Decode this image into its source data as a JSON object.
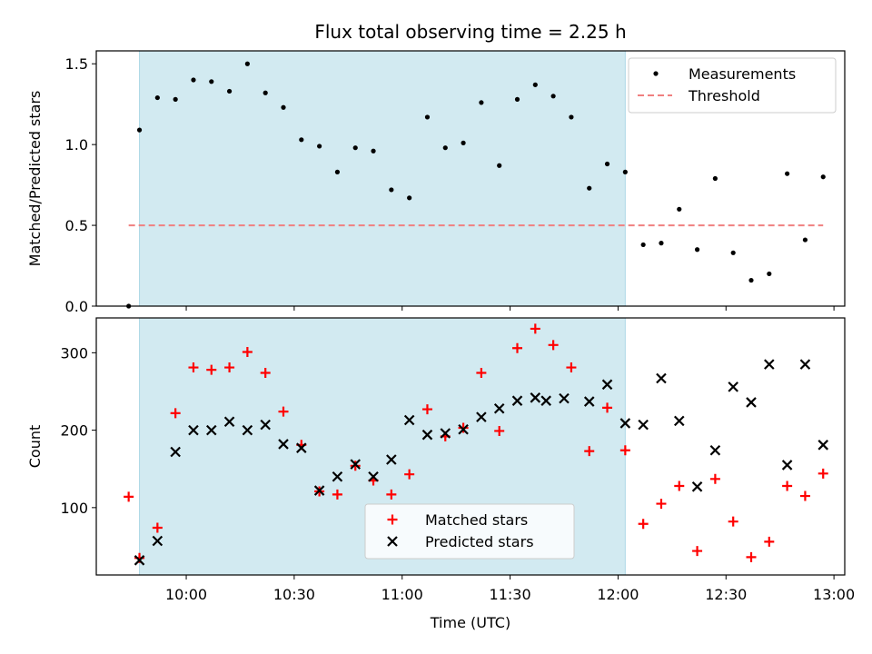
{
  "figure": {
    "title": "Flux total observing time = 2.25 h",
    "xlabel": "Time (UTC)"
  },
  "chart_data": [
    {
      "type": "scatter",
      "panel": "top",
      "ylabel": "Matched/Predicted stars",
      "ylim": [
        0,
        1.58
      ],
      "yticks": [
        0.0,
        0.5,
        1.0,
        1.5
      ],
      "ytick_labels": [
        "0.0",
        "0.5",
        "1.0",
        "1.5"
      ],
      "xlim": [
        "09:35",
        "13:03"
      ],
      "shaded_interval": [
        "09:47",
        "12:02"
      ],
      "shade_color": "#add8e6",
      "legend_position": "upper right",
      "series": [
        {
          "name": "Measurements",
          "marker": "dot",
          "color": "#000000",
          "points": [
            {
              "x": "09:44",
              "y": 0.0
            },
            {
              "x": "09:47",
              "y": 1.09
            },
            {
              "x": "09:52",
              "y": 1.29
            },
            {
              "x": "09:57",
              "y": 1.28
            },
            {
              "x": "10:02",
              "y": 1.4
            },
            {
              "x": "10:07",
              "y": 1.39
            },
            {
              "x": "10:12",
              "y": 1.33
            },
            {
              "x": "10:17",
              "y": 1.5
            },
            {
              "x": "10:22",
              "y": 1.32
            },
            {
              "x": "10:27",
              "y": 1.23
            },
            {
              "x": "10:32",
              "y": 1.03
            },
            {
              "x": "10:37",
              "y": 0.99
            },
            {
              "x": "10:42",
              "y": 0.83
            },
            {
              "x": "10:47",
              "y": 0.98
            },
            {
              "x": "10:52",
              "y": 0.96
            },
            {
              "x": "10:57",
              "y": 0.72
            },
            {
              "x": "11:02",
              "y": 0.67
            },
            {
              "x": "11:07",
              "y": 1.17
            },
            {
              "x": "11:12",
              "y": 0.98
            },
            {
              "x": "11:17",
              "y": 1.01
            },
            {
              "x": "11:22",
              "y": 1.26
            },
            {
              "x": "11:27",
              "y": 0.87
            },
            {
              "x": "11:32",
              "y": 1.28
            },
            {
              "x": "11:37",
              "y": 1.37
            },
            {
              "x": "11:42",
              "y": 1.3
            },
            {
              "x": "11:47",
              "y": 1.17
            },
            {
              "x": "11:52",
              "y": 0.73
            },
            {
              "x": "11:57",
              "y": 0.88
            },
            {
              "x": "12:02",
              "y": 0.83
            },
            {
              "x": "12:07",
              "y": 0.38
            },
            {
              "x": "12:12",
              "y": 0.39
            },
            {
              "x": "12:17",
              "y": 0.6
            },
            {
              "x": "12:22",
              "y": 0.35
            },
            {
              "x": "12:27",
              "y": 0.79
            },
            {
              "x": "12:32",
              "y": 0.33
            },
            {
              "x": "12:37",
              "y": 0.16
            },
            {
              "x": "12:42",
              "y": 0.2
            },
            {
              "x": "12:47",
              "y": 0.82
            },
            {
              "x": "12:52",
              "y": 0.41
            },
            {
              "x": "12:57",
              "y": 0.8
            }
          ]
        },
        {
          "name": "Threshold",
          "style": "dashed",
          "color": "#f08080",
          "points": [
            {
              "x": "09:44",
              "y": 0.5
            },
            {
              "x": "12:57",
              "y": 0.5
            }
          ]
        }
      ]
    },
    {
      "type": "scatter",
      "panel": "bottom",
      "ylabel": "Count",
      "ylim": [
        13,
        345
      ],
      "yticks": [
        100,
        200,
        300
      ],
      "ytick_labels": [
        "100",
        "200",
        "300"
      ],
      "xlim": [
        "09:35",
        "13:03"
      ],
      "xticks": [
        "10:00",
        "10:30",
        "11:00",
        "11:30",
        "12:00",
        "12:30",
        "13:00"
      ],
      "xtick_labels": [
        "10:00",
        "10:30",
        "11:00",
        "11:30",
        "12:00",
        "12:30",
        "13:00"
      ],
      "shaded_interval": [
        "09:47",
        "12:02"
      ],
      "shade_color": "#add8e6",
      "legend_position": "lower center",
      "series": [
        {
          "name": "Matched stars",
          "marker": "plus",
          "color": "#ff0000",
          "points": [
            {
              "x": "09:44",
              "y": 114
            },
            {
              "x": "09:47",
              "y": 35
            },
            {
              "x": "09:52",
              "y": 74
            },
            {
              "x": "09:57",
              "y": 222
            },
            {
              "x": "10:02",
              "y": 281
            },
            {
              "x": "10:07",
              "y": 278
            },
            {
              "x": "10:12",
              "y": 281
            },
            {
              "x": "10:17",
              "y": 301
            },
            {
              "x": "10:22",
              "y": 274
            },
            {
              "x": "10:27",
              "y": 224
            },
            {
              "x": "10:32",
              "y": 181
            },
            {
              "x": "10:37",
              "y": 121
            },
            {
              "x": "10:42",
              "y": 117
            },
            {
              "x": "10:47",
              "y": 154
            },
            {
              "x": "10:52",
              "y": 135
            },
            {
              "x": "10:57",
              "y": 117
            },
            {
              "x": "11:02",
              "y": 143
            },
            {
              "x": "11:07",
              "y": 227
            },
            {
              "x": "11:12",
              "y": 192
            },
            {
              "x": "11:17",
              "y": 203
            },
            {
              "x": "11:22",
              "y": 274
            },
            {
              "x": "11:27",
              "y": 199
            },
            {
              "x": "11:32",
              "y": 306
            },
            {
              "x": "11:37",
              "y": 331
            },
            {
              "x": "11:42",
              "y": 310
            },
            {
              "x": "11:47",
              "y": 281
            },
            {
              "x": "11:52",
              "y": 173
            },
            {
              "x": "11:57",
              "y": 229
            },
            {
              "x": "12:02",
              "y": 174
            },
            {
              "x": "12:07",
              "y": 79
            },
            {
              "x": "12:12",
              "y": 105
            },
            {
              "x": "12:17",
              "y": 128
            },
            {
              "x": "12:22",
              "y": 44
            },
            {
              "x": "12:27",
              "y": 137
            },
            {
              "x": "12:32",
              "y": 82
            },
            {
              "x": "12:37",
              "y": 36
            },
            {
              "x": "12:42",
              "y": 56
            },
            {
              "x": "12:47",
              "y": 128
            },
            {
              "x": "12:52",
              "y": 115
            },
            {
              "x": "12:57",
              "y": 144
            }
          ]
        },
        {
          "name": "Predicted stars",
          "marker": "x",
          "color": "#000000",
          "points": [
            {
              "x": "09:47",
              "y": 32
            },
            {
              "x": "09:52",
              "y": 57
            },
            {
              "x": "09:57",
              "y": 172
            },
            {
              "x": "10:02",
              "y": 200
            },
            {
              "x": "10:07",
              "y": 200
            },
            {
              "x": "10:12",
              "y": 211
            },
            {
              "x": "10:17",
              "y": 200
            },
            {
              "x": "10:22",
              "y": 207
            },
            {
              "x": "10:27",
              "y": 182
            },
            {
              "x": "10:32",
              "y": 177
            },
            {
              "x": "10:37",
              "y": 122
            },
            {
              "x": "10:42",
              "y": 140
            },
            {
              "x": "10:47",
              "y": 156
            },
            {
              "x": "10:52",
              "y": 140
            },
            {
              "x": "10:57",
              "y": 162
            },
            {
              "x": "11:02",
              "y": 213
            },
            {
              "x": "11:07",
              "y": 194
            },
            {
              "x": "11:12",
              "y": 196
            },
            {
              "x": "11:17",
              "y": 201
            },
            {
              "x": "11:22",
              "y": 217
            },
            {
              "x": "11:27",
              "y": 228
            },
            {
              "x": "11:32",
              "y": 238
            },
            {
              "x": "11:37",
              "y": 242
            },
            {
              "x": "11:40",
              "y": 238
            },
            {
              "x": "11:45",
              "y": 241
            },
            {
              "x": "11:52",
              "y": 237
            },
            {
              "x": "11:57",
              "y": 259
            },
            {
              "x": "12:02",
              "y": 209
            },
            {
              "x": "12:07",
              "y": 207
            },
            {
              "x": "12:12",
              "y": 267
            },
            {
              "x": "12:17",
              "y": 212
            },
            {
              "x": "12:22",
              "y": 127
            },
            {
              "x": "12:27",
              "y": 174
            },
            {
              "x": "12:32",
              "y": 256
            },
            {
              "x": "12:37",
              "y": 236
            },
            {
              "x": "12:42",
              "y": 285
            },
            {
              "x": "12:47",
              "y": 155
            },
            {
              "x": "12:52",
              "y": 285
            },
            {
              "x": "12:57",
              "y": 181
            }
          ]
        }
      ]
    }
  ]
}
